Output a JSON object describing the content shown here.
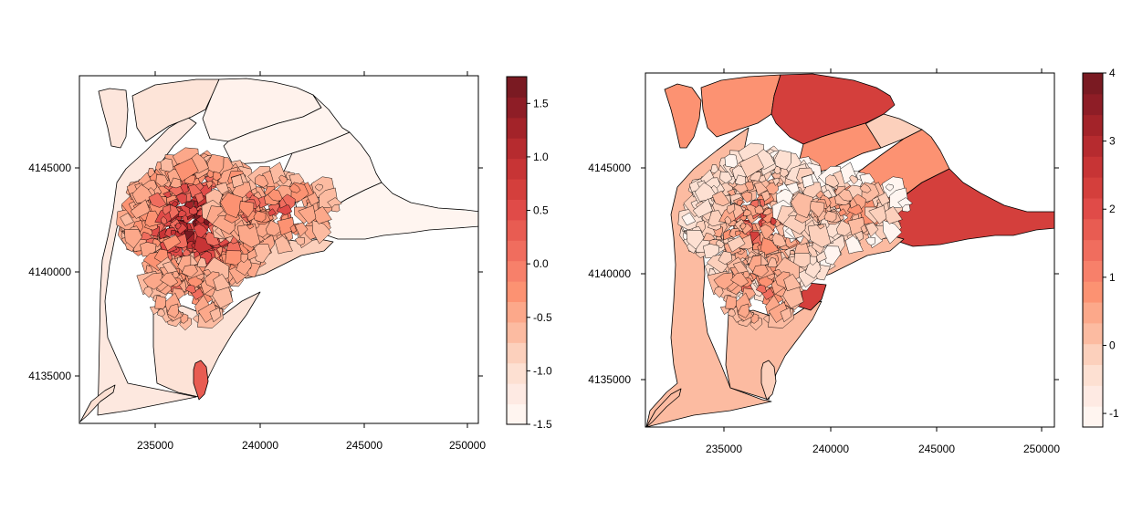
{
  "panels": [
    {
      "id": "left",
      "x_ticks": [
        "235000",
        "240000",
        "245000",
        "250000"
      ],
      "y_ticks": [
        "4135000",
        "4140000",
        "4145000"
      ],
      "legend": {
        "labels": [
          "1.5",
          "1.0",
          "0.5",
          "0.0",
          "-0.5",
          "-1.0",
          "-1.5"
        ],
        "range": [
          -1.5,
          1.75
        ],
        "label_values": [
          1.5,
          1.0,
          0.5,
          0.0,
          -0.5,
          -1.0,
          -1.5
        ],
        "colors": [
          "#fff5f0",
          "#feeae3",
          "#fde0d2",
          "#fcd0bc",
          "#fcbba1",
          "#fca88a",
          "#fc9272",
          "#f7806a",
          "#f06d5e",
          "#e85c52",
          "#e04b48",
          "#d43f3c",
          "#c73435",
          "#b62b2f",
          "#a32329",
          "#8e1d26",
          "#7a1a22"
        ]
      }
    },
    {
      "id": "right",
      "x_ticks": [
        "235000",
        "240000",
        "245000",
        "250000"
      ],
      "y_ticks": [
        "4135000",
        "4140000",
        "4145000"
      ],
      "legend": {
        "labels": [
          "4",
          "3",
          "2",
          "1",
          "0",
          "-1"
        ],
        "range": [
          -1.2,
          4.0
        ],
        "label_values": [
          4,
          3,
          2,
          1,
          0,
          -1
        ],
        "colors": [
          "#fff5f0",
          "#feeae3",
          "#fde0d2",
          "#fcd0bc",
          "#fcbba1",
          "#fca88a",
          "#fc9272",
          "#f7806a",
          "#f06d5e",
          "#e85c52",
          "#e04b48",
          "#d43f3c",
          "#c73435",
          "#b62b2f",
          "#a32329",
          "#8e1d26",
          "#7a1a22"
        ]
      }
    }
  ],
  "map_extent": {
    "x": [
      231200,
      250500
    ],
    "y": [
      4132700,
      4149500
    ]
  }
}
